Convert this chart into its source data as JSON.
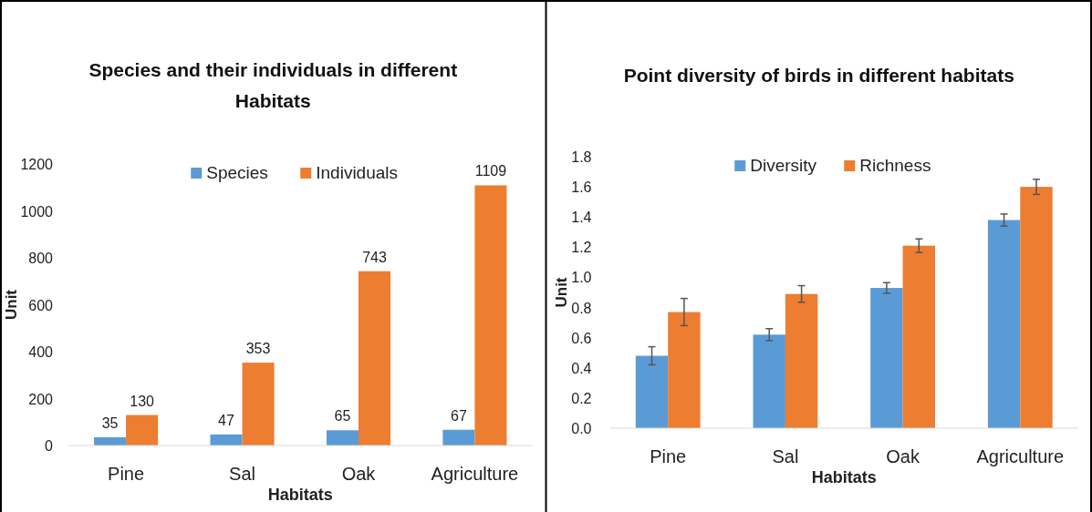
{
  "chart_data": [
    {
      "type": "bar",
      "title": "Species and their individuals in different Habitats",
      "xlabel": "Habitats",
      "ylabel": "Unit",
      "categories": [
        "Pine",
        "Sal",
        "Oak",
        "Agriculture"
      ],
      "series": [
        {
          "name": "Species",
          "color": "#5b9bd5",
          "values": [
            35,
            47,
            65,
            67
          ]
        },
        {
          "name": "Individuals",
          "color": "#ed7d31",
          "values": [
            130,
            353,
            743,
            1109
          ]
        }
      ],
      "ylim": [
        0,
        1200
      ],
      "yticks": [
        0,
        200,
        400,
        600,
        800,
        1000,
        1200
      ],
      "grid": false,
      "legend": "top",
      "data_labels": true
    },
    {
      "type": "bar",
      "title": "Point diversity of birds in different habitats",
      "xlabel": "Habitats",
      "ylabel": "Unit",
      "categories": [
        "Pine",
        "Sal",
        "Oak",
        "Agriculture"
      ],
      "series": [
        {
          "name": "Diversity",
          "color": "#5b9bd5",
          "values": [
            0.48,
            0.62,
            0.93,
            1.38
          ],
          "errors": [
            0.06,
            0.04,
            0.035,
            0.04
          ]
        },
        {
          "name": "Richness",
          "color": "#ed7d31",
          "values": [
            0.77,
            0.89,
            1.21,
            1.6
          ],
          "errors": [
            0.09,
            0.055,
            0.045,
            0.05
          ]
        }
      ],
      "ylim": [
        0,
        1.8
      ],
      "yticks": [
        {
          "value": 0,
          "label": "0.0"
        },
        0.2,
        0.4,
        0.6,
        0.8,
        {
          "value": 1,
          "label": "1.0"
        },
        1.2,
        1.4,
        1.6,
        1.8
      ],
      "grid": false,
      "legend": "top"
    }
  ]
}
